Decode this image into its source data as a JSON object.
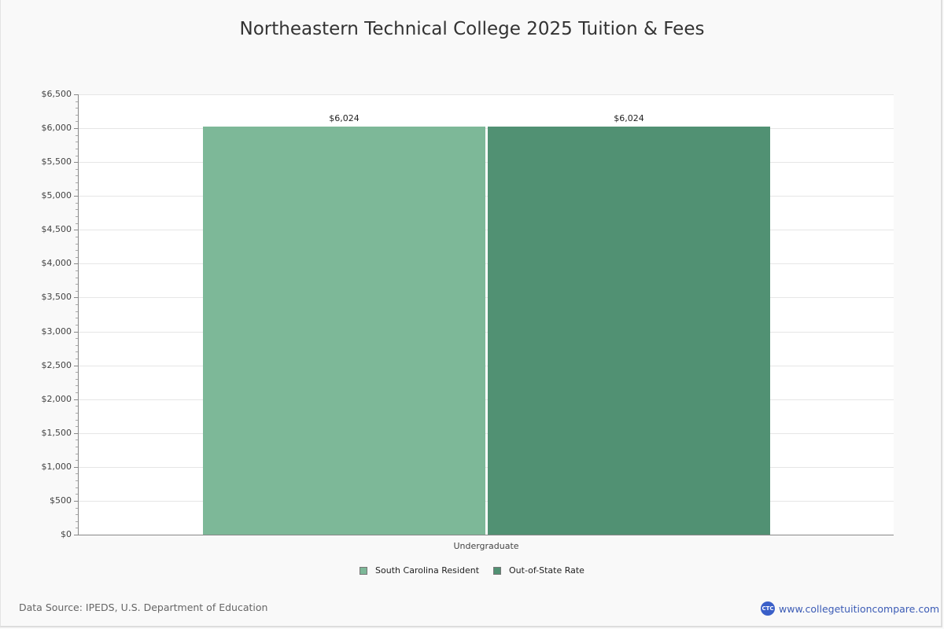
{
  "chart_data": {
    "type": "bar",
    "title": "Northeastern Technical College 2025 Tuition & Fees",
    "categories": [
      "Undergraduate"
    ],
    "series": [
      {
        "name": "South Carolina Resident",
        "values": [
          6024
        ],
        "color": "#7db898"
      },
      {
        "name": "Out-of-State Rate",
        "values": [
          6024
        ],
        "color": "#519173"
      }
    ],
    "data_labels": [
      "$6,024",
      "$6,024"
    ],
    "xlabel": "",
    "ylabel": "",
    "ylim": [
      0,
      6500
    ],
    "yticks": [
      "$0",
      "$500",
      "$1,000",
      "$1,500",
      "$2,000",
      "$2,500",
      "$3,000",
      "$3,500",
      "$4,000",
      "$4,500",
      "$5,000",
      "$5,500",
      "$6,000",
      "$6,500"
    ],
    "grid": true,
    "legend_position": "bottom"
  },
  "footer": {
    "source": "Data Source: IPEDS, U.S. Department of Education",
    "brand_logo": "CTC",
    "brand_url": "www.collegetuitioncompare.com"
  }
}
